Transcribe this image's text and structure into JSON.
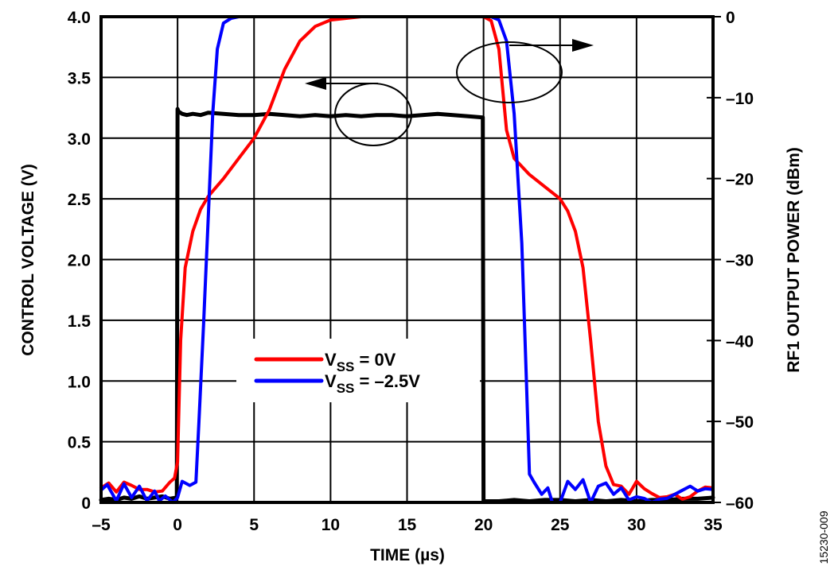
{
  "chart_data": {
    "type": "line",
    "title": "",
    "xlabel": "TIME (µs)",
    "ylabel": "CONTROL VOLTAGE (V)",
    "y2label": "RF1 OUTPUT POWER (dBm)",
    "xlim": [
      -5,
      35
    ],
    "ylim": [
      0,
      4.0
    ],
    "y2lim": [
      -60,
      0
    ],
    "grid": true,
    "x_ticks": [
      "–5",
      "0",
      "5",
      "10",
      "15",
      "20",
      "25",
      "30",
      "35"
    ],
    "x_tick_values": [
      -5,
      0,
      5,
      10,
      15,
      20,
      25,
      30,
      35
    ],
    "y_ticks": [
      "0",
      "0.5",
      "1.0",
      "1.5",
      "2.0",
      "2.5",
      "3.0",
      "3.5",
      "4.0"
    ],
    "y_tick_values": [
      0,
      0.5,
      1.0,
      1.5,
      2.0,
      2.5,
      3.0,
      3.5,
      4.0
    ],
    "y2_ticks": [
      "0",
      "–10",
      "–20",
      "–30",
      "–40",
      "–50",
      "–60"
    ],
    "y2_tick_values": [
      0,
      -10,
      -20,
      -30,
      -40,
      -50,
      -60
    ],
    "legend": {
      "placement": "center-bottom",
      "entries": [
        {
          "main": "V",
          "sub": "SS",
          "rest": " = 0V",
          "color": "#ff0000"
        },
        {
          "main": "V",
          "sub": "SS",
          "rest": " = –2.5V",
          "color": "#0000ff"
        }
      ]
    },
    "annotations": [
      {
        "type": "ellipse-arrow",
        "target": "control voltage",
        "axis": "left",
        "direction": "left"
      },
      {
        "type": "ellipse-arrow",
        "target": "RF output power",
        "axis": "right",
        "direction": "right"
      }
    ],
    "series": [
      {
        "name": "Control Voltage",
        "axis": "left",
        "color": "#000000",
        "x": [
          -5,
          -4.5,
          -4,
          -3.5,
          -3,
          -2.5,
          -2,
          -1.5,
          -1,
          -0.5,
          -0.05,
          0,
          0.05,
          0.3,
          0.6,
          1,
          1.5,
          2,
          3,
          4,
          5,
          6,
          7,
          8,
          9,
          10,
          11,
          12,
          13,
          14,
          15,
          16,
          17,
          18,
          19,
          19.95,
          20,
          20.05,
          21,
          22,
          23,
          24,
          25,
          26,
          27,
          28,
          29,
          30,
          31,
          32,
          33,
          34,
          35
        ],
        "values": [
          0.02,
          0.03,
          0.02,
          0.04,
          0.03,
          0.05,
          0.03,
          0.04,
          0.05,
          0.03,
          0.04,
          3.24,
          3.22,
          3.2,
          3.19,
          3.2,
          3.19,
          3.21,
          3.2,
          3.19,
          3.19,
          3.2,
          3.19,
          3.18,
          3.19,
          3.18,
          3.19,
          3.18,
          3.19,
          3.19,
          3.18,
          3.19,
          3.2,
          3.19,
          3.18,
          3.17,
          0.01,
          0.01,
          0.01,
          0.02,
          0.01,
          0.02,
          0.02,
          0.01,
          0.02,
          0.01,
          0.02,
          0.01,
          0.02,
          0.02,
          0.03,
          0.03,
          0.04
        ]
      },
      {
        "name": "VSS = 0V",
        "axis": "right",
        "color": "#ff0000",
        "x": [
          -5,
          -4.5,
          -4,
          -3.5,
          -3,
          -2.5,
          -2,
          -1.5,
          -1,
          -0.5,
          -0.2,
          0,
          0.2,
          0.5,
          1,
          1.5,
          2,
          3,
          4,
          5,
          6,
          7,
          8,
          9,
          10,
          12,
          15,
          18,
          20,
          20.5,
          21,
          21.5,
          22,
          23,
          24,
          25,
          25.5,
          26,
          26.5,
          27,
          27.5,
          28,
          28.5,
          29,
          29.5,
          30,
          30.5,
          31,
          31.5,
          32,
          32.5,
          33,
          33.5,
          34,
          34.5,
          35
        ],
        "values": [
          -58.2,
          -57.6,
          -58.7,
          -57.5,
          -57.9,
          -58.4,
          -58.4,
          -58.7,
          -58.6,
          -57.5,
          -57.0,
          -55.0,
          -40.0,
          -31.0,
          -26.5,
          -23.8,
          -22.2,
          -20.0,
          -17.5,
          -15.0,
          -11.5,
          -6.5,
          -3.0,
          -1.2,
          -0.4,
          0,
          0,
          0,
          0,
          -0.5,
          -4.0,
          -14.0,
          -17.5,
          -19.5,
          -21.0,
          -22.5,
          -24.0,
          -26.5,
          -31.0,
          -40.0,
          -50.0,
          -55.5,
          -57.8,
          -58.0,
          -59.0,
          -57.4,
          -58.3,
          -58.9,
          -59.4,
          -59.3,
          -59.0,
          -59.6,
          -59.3,
          -58.6,
          -58.1,
          -58.2
        ]
      },
      {
        "name": "VSS = –2.5V",
        "axis": "right",
        "color": "#0000ff",
        "x": [
          -5,
          -4.6,
          -4,
          -3.5,
          -3,
          -2.5,
          -2,
          -1.5,
          -1.2,
          -0.8,
          -0.3,
          0,
          0.3,
          0.8,
          1.2,
          1.4,
          1.7,
          2,
          2.3,
          2.6,
          3,
          3.5,
          4,
          6,
          10,
          15,
          20,
          20.5,
          21,
          21.5,
          22,
          22.5,
          22.8,
          23,
          23.3,
          23.8,
          24.2,
          24.5,
          25,
          25.5,
          26,
          26.5,
          27,
          27.5,
          28,
          28.5,
          29,
          29.5,
          30,
          30.5,
          31,
          31.5,
          32,
          32.5,
          33,
          33.5,
          34,
          34.5,
          35
        ],
        "values": [
          -58.5,
          -57.8,
          -59.8,
          -57.7,
          -59.4,
          -58.0,
          -59.8,
          -58.6,
          -59.8,
          -59.2,
          -60,
          -59.4,
          -57.4,
          -57.9,
          -57.5,
          -50.0,
          -38.0,
          -25.0,
          -12.0,
          -4.0,
          -0.8,
          -0.2,
          0,
          0,
          0,
          0,
          0,
          0,
          -0.4,
          -3.0,
          -12.0,
          -28.0,
          -45.0,
          -56.5,
          -57.5,
          -59.0,
          -58.2,
          -60,
          -60,
          -57.4,
          -58.4,
          -57.2,
          -60,
          -58.0,
          -57.6,
          -59.0,
          -58.2,
          -59.7,
          -59.3,
          -59.5,
          -60,
          -59.6,
          -59.5,
          -59.0,
          -58.5,
          -58.0,
          -58.6,
          -58.3,
          -58.4
        ]
      }
    ]
  },
  "figure_id": "15230-009"
}
